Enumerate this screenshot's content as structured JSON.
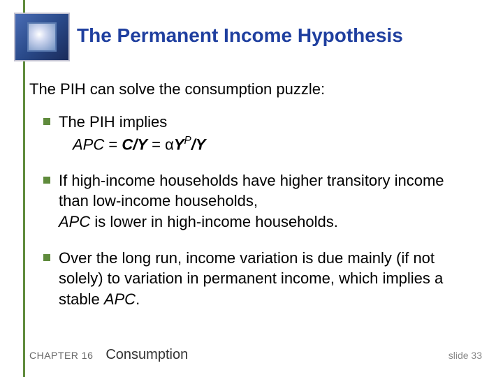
{
  "title": "The Permanent Income Hypothesis",
  "intro": "The PIH can solve the consumption puzzle:",
  "bullets": {
    "b1_line1": "The PIH implies",
    "b1_formula_apc": "APC",
    "b1_formula_eq1": " = ",
    "b1_formula_cy": "C/Y",
    "b1_formula_eq2": "  =  ",
    "b1_formula_alpha": "α",
    "b1_formula_y": "Y",
    "b1_formula_p": "P",
    "b1_formula_slash_y": "/Y",
    "b2_part1": "If high-income households have higher transitory income than low-income households,",
    "b2_apc": "APC",
    "b2_part2": " is lower in high-income households.",
    "b3_part1": "Over the long run, income variation is due mainly (if not solely) to variation in permanent income, which implies a stable ",
    "b3_apc": "APC",
    "b3_period": "."
  },
  "footer": {
    "chapter": "CHAPTER 16",
    "topic": "Consumption",
    "slide": "slide 33"
  },
  "colors": {
    "accent_green": "#5f8b3c",
    "title_blue": "#1f3f9f",
    "footer_gray": "#666666"
  }
}
